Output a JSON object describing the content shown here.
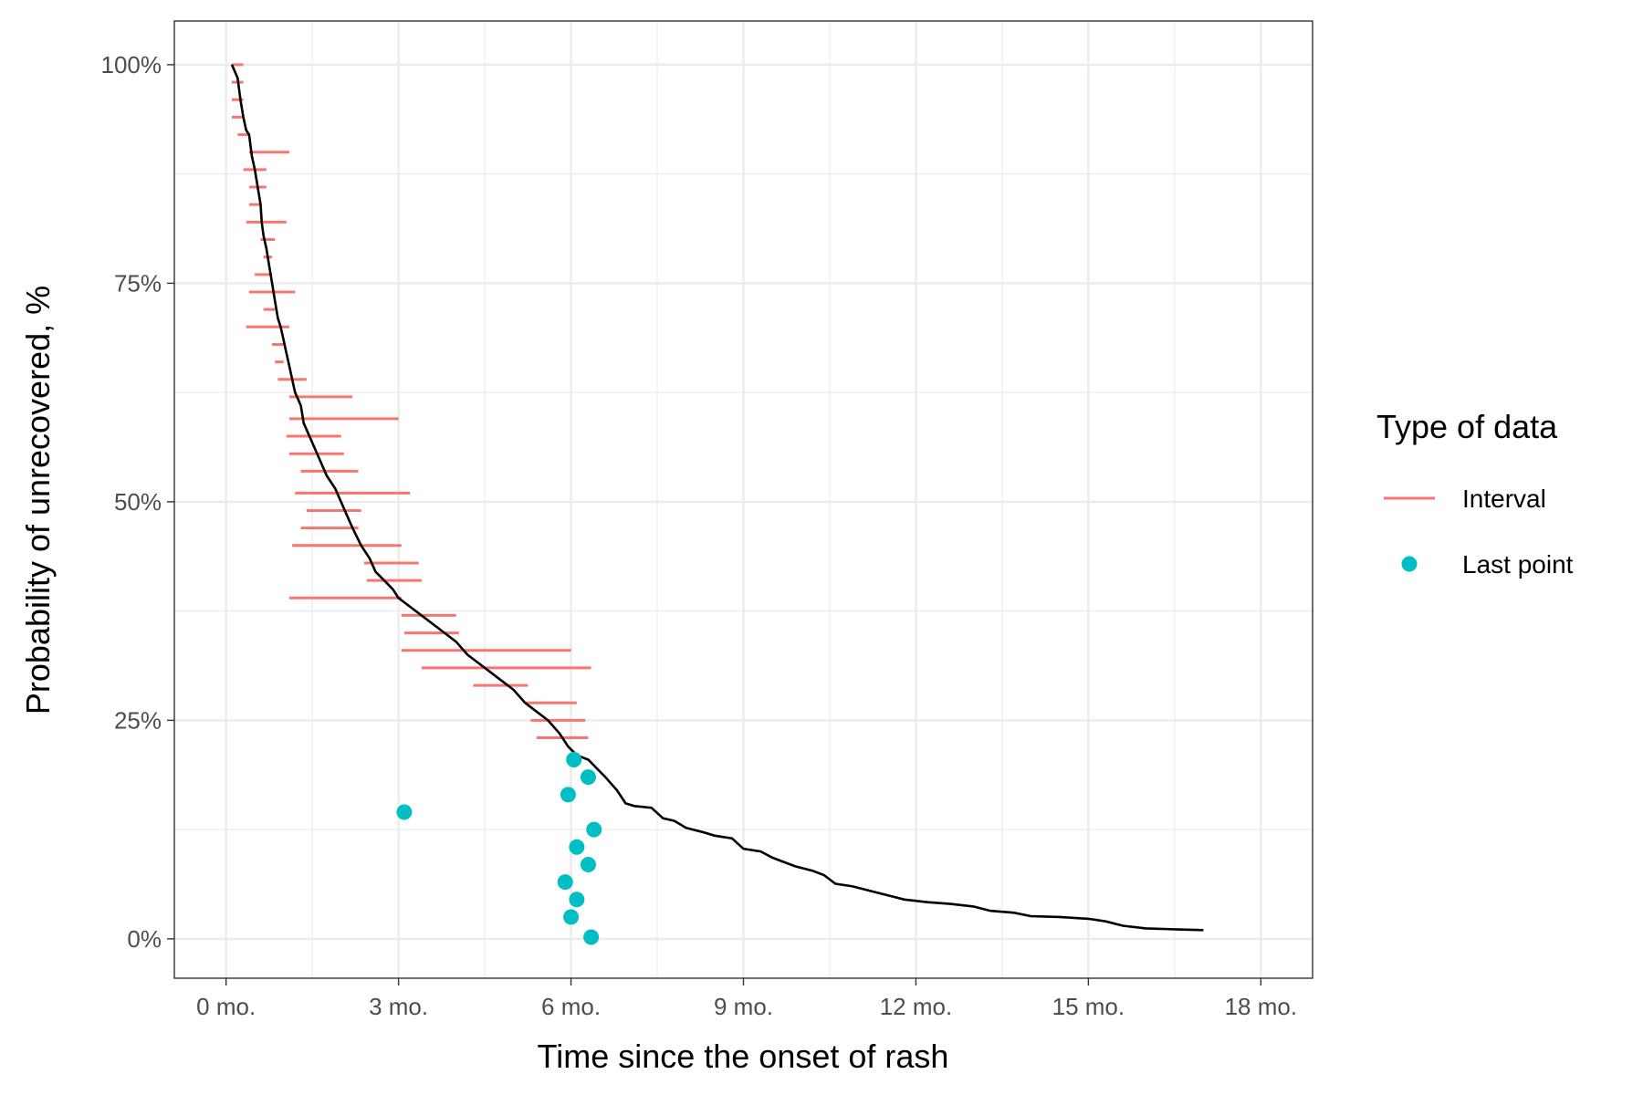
{
  "chart_data": {
    "type": "line",
    "title": "",
    "xlabel": "Time since the onset of rash",
    "ylabel": "Probability of unrecovered, %",
    "xlim": [
      -0.9,
      18.9
    ],
    "ylim": [
      -4.5,
      105
    ],
    "x_ticks": [
      0,
      3,
      6,
      9,
      12,
      15,
      18
    ],
    "x_tick_labels": [
      "0 mo.",
      "3 mo.",
      "6 mo.",
      "9 mo.",
      "12 mo.",
      "15 mo.",
      "18 mo."
    ],
    "y_ticks": [
      0,
      25,
      50,
      75,
      100
    ],
    "y_tick_labels": [
      "0%",
      "25%",
      "50%",
      "75%",
      "100%"
    ],
    "grid": true,
    "legend": {
      "title": "Type of data",
      "placement": "right",
      "entries": [
        {
          "label": "Interval",
          "kind": "segment",
          "color": "#F8766D"
        },
        {
          "label": "Last point",
          "kind": "point",
          "color": "#00BFC4"
        }
      ]
    },
    "survival_curve": {
      "color": "#000000",
      "points": [
        [
          0.1,
          100
        ],
        [
          0.2,
          98.5
        ],
        [
          0.25,
          96
        ],
        [
          0.3,
          94
        ],
        [
          0.35,
          92.5
        ],
        [
          0.4,
          92
        ],
        [
          0.45,
          89.5
        ],
        [
          0.5,
          88
        ],
        [
          0.55,
          86
        ],
        [
          0.6,
          84
        ],
        [
          0.62,
          82
        ],
        [
          0.65,
          80.5
        ],
        [
          0.7,
          79
        ],
        [
          0.75,
          77
        ],
        [
          0.8,
          75
        ],
        [
          0.85,
          73
        ],
        [
          0.9,
          71
        ],
        [
          0.95,
          70
        ],
        [
          1.0,
          68.5
        ],
        [
          1.05,
          67
        ],
        [
          1.1,
          65.5
        ],
        [
          1.15,
          64
        ],
        [
          1.2,
          62.5
        ],
        [
          1.3,
          61
        ],
        [
          1.35,
          59
        ],
        [
          1.45,
          57.5
        ],
        [
          1.55,
          56
        ],
        [
          1.65,
          54.5
        ],
        [
          1.75,
          53
        ],
        [
          1.9,
          51.5
        ],
        [
          2.0,
          50
        ],
        [
          2.1,
          48.5
        ],
        [
          2.2,
          47
        ],
        [
          2.35,
          45
        ],
        [
          2.5,
          43.5
        ],
        [
          2.6,
          42
        ],
        [
          2.75,
          41
        ],
        [
          2.9,
          40
        ],
        [
          3.0,
          39
        ],
        [
          3.2,
          38
        ],
        [
          3.4,
          37
        ],
        [
          3.6,
          36
        ],
        [
          3.8,
          35
        ],
        [
          4.0,
          34
        ],
        [
          4.2,
          32.5
        ],
        [
          4.4,
          31.5
        ],
        [
          4.6,
          30.5
        ],
        [
          4.8,
          29.5
        ],
        [
          5.0,
          28.5
        ],
        [
          5.2,
          27
        ],
        [
          5.4,
          26
        ],
        [
          5.6,
          25
        ],
        [
          5.8,
          23.5
        ],
        [
          5.95,
          22
        ],
        [
          6.1,
          21
        ],
        [
          6.3,
          20.5
        ],
        [
          6.45,
          19.5
        ],
        [
          6.6,
          18.5
        ],
        [
          6.8,
          17
        ],
        [
          6.95,
          15.5
        ],
        [
          7.1,
          15.2
        ],
        [
          7.4,
          15
        ],
        [
          7.6,
          13.8
        ],
        [
          7.8,
          13.5
        ],
        [
          8.0,
          12.7
        ],
        [
          8.3,
          12.2
        ],
        [
          8.5,
          11.8
        ],
        [
          8.8,
          11.5
        ],
        [
          9.0,
          10.3
        ],
        [
          9.3,
          10
        ],
        [
          9.5,
          9.3
        ],
        [
          9.7,
          8.8
        ],
        [
          9.9,
          8.3
        ],
        [
          10.2,
          7.8
        ],
        [
          10.4,
          7.3
        ],
        [
          10.6,
          6.3
        ],
        [
          10.9,
          6
        ],
        [
          11.2,
          5.5
        ],
        [
          11.5,
          5
        ],
        [
          11.8,
          4.5
        ],
        [
          12.2,
          4.2
        ],
        [
          12.6,
          4
        ],
        [
          13.0,
          3.7
        ],
        [
          13.3,
          3.2
        ],
        [
          13.7,
          3
        ],
        [
          14.0,
          2.6
        ],
        [
          14.5,
          2.5
        ],
        [
          15.0,
          2.3
        ],
        [
          15.3,
          2
        ],
        [
          15.6,
          1.5
        ],
        [
          16.0,
          1.2
        ],
        [
          16.5,
          1.1
        ],
        [
          17.0,
          1
        ]
      ]
    },
    "series": [
      {
        "name": "Interval",
        "intervals": [
          [
            0.1,
            0.3,
            100
          ],
          [
            0.1,
            0.3,
            98
          ],
          [
            0.1,
            0.3,
            96
          ],
          [
            0.1,
            0.3,
            94
          ],
          [
            0.2,
            0.4,
            92
          ],
          [
            0.4,
            1.1,
            90
          ],
          [
            0.3,
            0.7,
            88
          ],
          [
            0.4,
            0.7,
            86
          ],
          [
            0.4,
            0.6,
            84
          ],
          [
            0.35,
            1.05,
            82
          ],
          [
            0.6,
            0.85,
            80
          ],
          [
            0.65,
            0.8,
            78
          ],
          [
            0.5,
            0.8,
            76
          ],
          [
            0.4,
            1.2,
            74
          ],
          [
            0.65,
            0.85,
            72
          ],
          [
            0.35,
            1.1,
            70
          ],
          [
            0.8,
            1.0,
            68
          ],
          [
            0.85,
            1.0,
            66
          ],
          [
            0.9,
            1.4,
            64
          ],
          [
            1.1,
            2.2,
            62
          ],
          [
            1.1,
            3.0,
            59.5
          ],
          [
            1.05,
            2.0,
            57.5
          ],
          [
            1.1,
            2.05,
            55.5
          ],
          [
            1.3,
            2.3,
            53.5
          ],
          [
            1.2,
            3.2,
            51
          ],
          [
            1.4,
            2.35,
            49
          ],
          [
            1.3,
            2.3,
            47
          ],
          [
            1.15,
            3.05,
            45
          ],
          [
            2.4,
            3.35,
            43
          ],
          [
            2.45,
            3.4,
            41
          ],
          [
            1.1,
            3.05,
            39
          ],
          [
            3.05,
            4.0,
            37
          ],
          [
            3.1,
            4.05,
            35
          ],
          [
            3.05,
            6.0,
            33
          ],
          [
            3.4,
            6.35,
            31
          ],
          [
            4.3,
            5.25,
            29
          ],
          [
            5.2,
            6.1,
            27
          ],
          [
            5.3,
            6.25,
            25
          ],
          [
            5.4,
            6.3,
            23
          ]
        ]
      },
      {
        "name": "Last point",
        "points": [
          [
            6.05,
            20.5
          ],
          [
            6.3,
            18.5
          ],
          [
            5.95,
            16.5
          ],
          [
            3.1,
            14.5
          ],
          [
            6.4,
            12.5
          ],
          [
            6.1,
            10.5
          ],
          [
            6.3,
            8.5
          ],
          [
            5.9,
            6.5
          ],
          [
            6.1,
            4.5
          ],
          [
            6.0,
            2.5
          ],
          [
            6.35,
            0.2
          ]
        ]
      }
    ]
  }
}
